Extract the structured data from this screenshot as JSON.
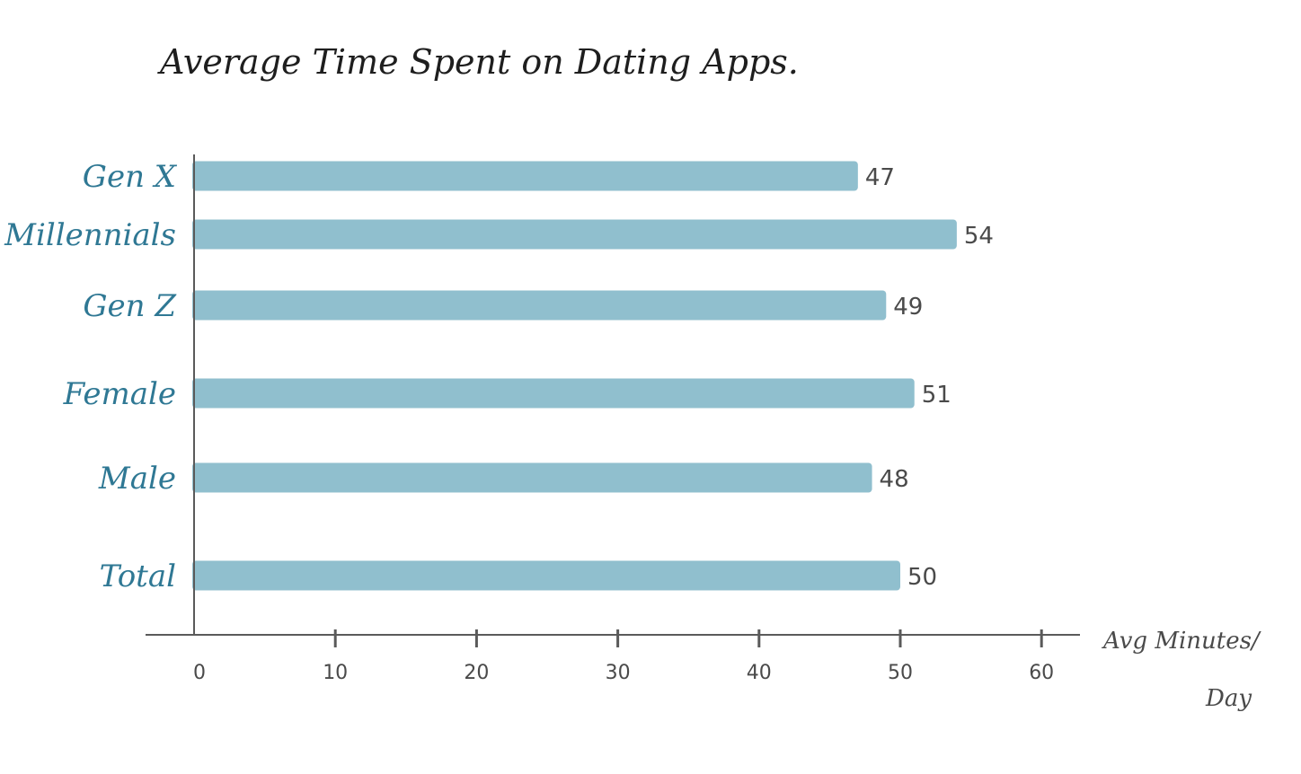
{
  "chart_data": {
    "type": "bar",
    "orientation": "horizontal",
    "title": "Average Time Spent on Dating Apps.",
    "categories": [
      "Gen X",
      "Millennials",
      "Gen Z",
      "Female",
      "Male",
      "Total"
    ],
    "values": [
      47,
      54,
      49,
      51,
      48,
      50
    ],
    "data_labels": [
      "47",
      "54",
      "49",
      "51",
      "48",
      "50"
    ],
    "xlabel": "Avg Minutes/ Day",
    "xlabel_line1": "Avg Minutes/",
    "xlabel_line2": "Day",
    "xticks": [
      0,
      10,
      20,
      30,
      40,
      50,
      60
    ],
    "xtick_labels": [
      "0",
      "10",
      "20",
      "30",
      "40",
      "50",
      "60"
    ],
    "xlim": [
      0,
      60
    ],
    "grid": false,
    "colors": {
      "bar": "#90bfce",
      "category_label": "#2f7894",
      "axis": "#5a5a5a",
      "text": "#4a4a4a",
      "title": "#1e1e1e"
    }
  }
}
